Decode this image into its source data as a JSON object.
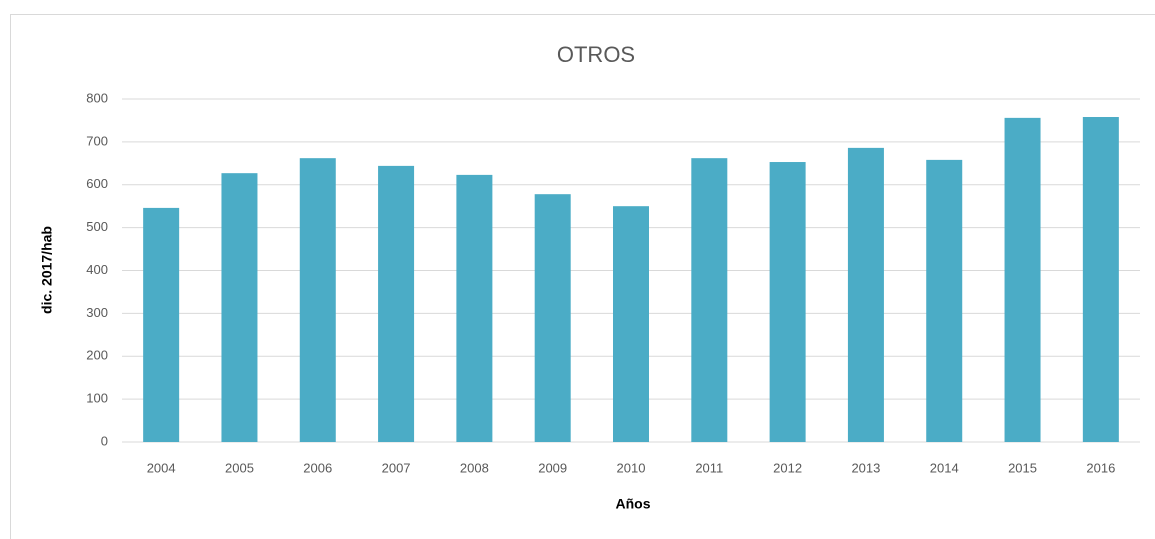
{
  "chart_data": {
    "type": "bar",
    "title": "OTROS",
    "y_label": "dic. 2017/hab",
    "x_label": "Años",
    "categories": [
      "2004",
      "2005",
      "2006",
      "2007",
      "2008",
      "2009",
      "2010",
      "2011",
      "2012",
      "2013",
      "2014",
      "2015",
      "2016"
    ],
    "values": [
      546,
      627,
      662,
      644,
      623,
      578,
      550,
      662,
      653,
      686,
      658,
      756,
      758
    ],
    "color": "#4bacc6",
    "ylim": [
      0,
      800
    ],
    "yticks": [
      0,
      100,
      200,
      300,
      400,
      500,
      600,
      700,
      800
    ],
    "grid": true
  }
}
